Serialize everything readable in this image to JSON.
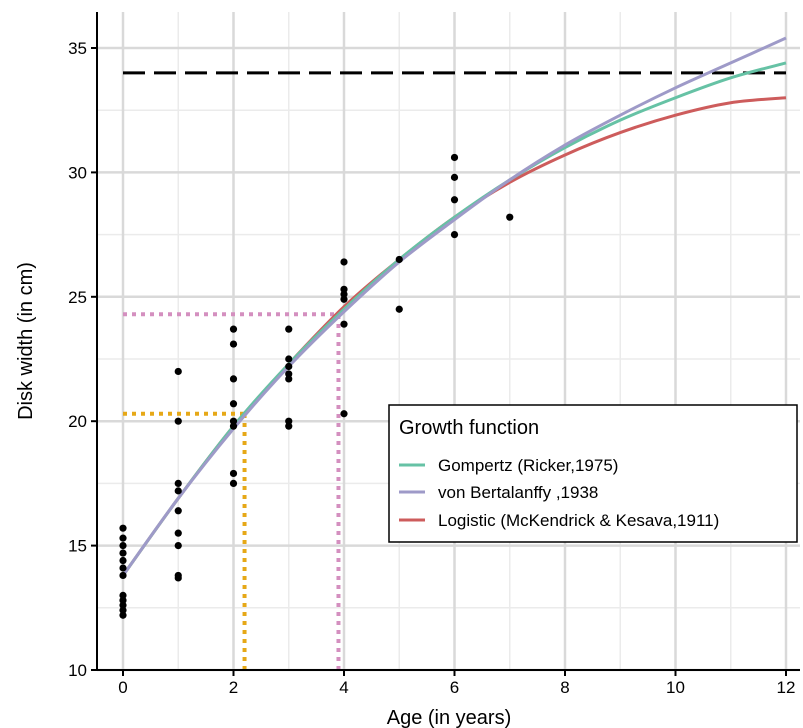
{
  "chart_data": {
    "type": "line",
    "xlabel": "Age (in years)",
    "ylabel": "Disk width (in cm)",
    "xlim": [
      -0.5,
      12.3
    ],
    "ylim": [
      10,
      36.5
    ],
    "x_ticks": [
      0,
      2,
      4,
      6,
      8,
      10,
      12
    ],
    "y_ticks": [
      10,
      15,
      20,
      25,
      30,
      35
    ],
    "x_minor_grid": [
      1,
      3,
      5,
      7,
      9,
      11
    ],
    "y_minor_grid": [
      12.5,
      17.5,
      22.5,
      27.5,
      32.5
    ],
    "grid": true,
    "legend": {
      "title": "Growth function",
      "placement": "bottom-right",
      "entries": [
        "Gompertz (Ricker,1975)",
        "von Bertalanffy ,1938",
        "Logistic (McKendrick & Kesava,1911)"
      ]
    },
    "series": [
      {
        "name": "Gompertz (Ricker,1975)",
        "color": "#66c2a5",
        "x": [
          0,
          1,
          2,
          3,
          4,
          5,
          6,
          7,
          8,
          9,
          10,
          11,
          12
        ],
        "y": [
          13.8,
          16.9,
          19.8,
          22.3,
          24.5,
          26.5,
          28.2,
          29.7,
          31.0,
          32.1,
          33.0,
          33.8,
          34.4
        ]
      },
      {
        "name": "von Bertalanffy ,1938",
        "color": "#9e9ac8",
        "x": [
          0,
          1,
          2,
          3,
          4,
          5,
          6,
          7,
          8,
          9,
          10,
          11,
          12
        ],
        "y": [
          13.8,
          16.9,
          19.7,
          22.2,
          24.4,
          26.4,
          28.1,
          29.7,
          31.1,
          32.3,
          33.4,
          34.4,
          35.4
        ]
      },
      {
        "name": "Logistic (McKendrick & Kesava,1911)",
        "color": "#cd5c5c",
        "x": [
          0,
          1,
          2,
          3,
          4,
          5,
          6,
          7,
          8,
          9,
          10,
          11,
          12
        ],
        "y": [
          13.8,
          16.9,
          19.8,
          22.3,
          24.6,
          26.5,
          28.2,
          29.6,
          30.7,
          31.6,
          32.3,
          32.8,
          33.0
        ]
      }
    ],
    "reference_lines": [
      {
        "type": "horizontal",
        "y": 34,
        "x_range": [
          0,
          12
        ],
        "color": "#000000",
        "style": "dashed"
      },
      {
        "type": "horizontal",
        "y": 20.3,
        "x_range": [
          0,
          2.2
        ],
        "color": "#e6a817",
        "style": "dotted"
      },
      {
        "type": "vertical",
        "x": 2.2,
        "y_range": [
          10,
          20.3
        ],
        "color": "#e6a817",
        "style": "dotted"
      },
      {
        "type": "horizontal",
        "y": 24.3,
        "x_range": [
          0,
          3.9
        ],
        "color": "#d48fbf",
        "style": "dotted"
      },
      {
        "type": "vertical",
        "x": 3.9,
        "y_range": [
          10,
          24.3
        ],
        "color": "#d48fbf",
        "style": "dotted"
      }
    ],
    "observations": {
      "color": "#000000",
      "points": [
        [
          0,
          15.7
        ],
        [
          0,
          15.3
        ],
        [
          0,
          15.0
        ],
        [
          0,
          14.7
        ],
        [
          0,
          14.4
        ],
        [
          0,
          14.1
        ],
        [
          0,
          13.8
        ],
        [
          0,
          13.0
        ],
        [
          0,
          12.8
        ],
        [
          0,
          12.6
        ],
        [
          0,
          12.4
        ],
        [
          0,
          12.2
        ],
        [
          1,
          22.0
        ],
        [
          1,
          20.0
        ],
        [
          1,
          17.5
        ],
        [
          1,
          17.2
        ],
        [
          1,
          16.4
        ],
        [
          1,
          15.5
        ],
        [
          1,
          15.0
        ],
        [
          1,
          13.8
        ],
        [
          1,
          13.7
        ],
        [
          2,
          23.7
        ],
        [
          2,
          23.1
        ],
        [
          2,
          21.7
        ],
        [
          2,
          20.7
        ],
        [
          2,
          20.0
        ],
        [
          2,
          19.8
        ],
        [
          2,
          17.9
        ],
        [
          2,
          17.5
        ],
        [
          3,
          23.7
        ],
        [
          3,
          22.5
        ],
        [
          3,
          22.2
        ],
        [
          3,
          21.9
        ],
        [
          3,
          21.7
        ],
        [
          3,
          20.0
        ],
        [
          3,
          19.8
        ],
        [
          4,
          26.4
        ],
        [
          4,
          25.3
        ],
        [
          4,
          25.1
        ],
        [
          4,
          24.9
        ],
        [
          4,
          23.9
        ],
        [
          4,
          20.3
        ],
        [
          5,
          26.5
        ],
        [
          5,
          24.5
        ],
        [
          6,
          30.6
        ],
        [
          6,
          29.8
        ],
        [
          6,
          28.9
        ],
        [
          6,
          27.5
        ],
        [
          7,
          28.2
        ]
      ]
    }
  }
}
